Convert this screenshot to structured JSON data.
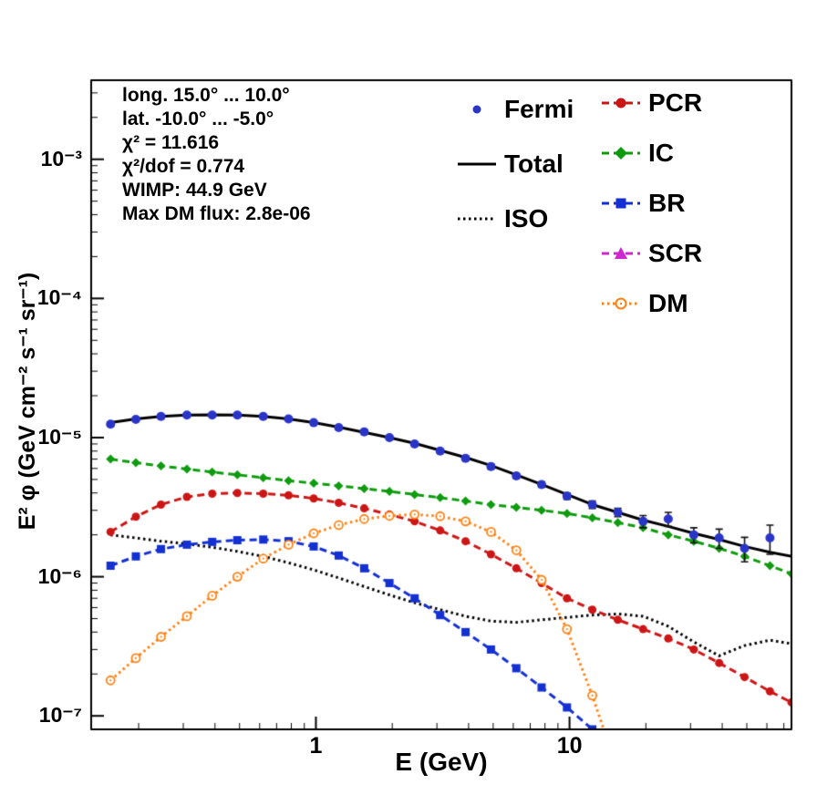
{
  "annotations": {
    "lines": [
      "long. 15.0° ... 10.0°",
      "lat. -10.0° ... -5.0°",
      "χ² = 11.616",
      "χ²/dof = 0.774",
      "WIMP: 44.9 GeV",
      "Max DM flux: 2.8e-06"
    ]
  },
  "chart_data": {
    "type": "line",
    "title": "",
    "xlabel": "E (GeV)",
    "ylabel": "E² φ (GeV cm⁻² s⁻¹ sr⁻¹)",
    "xscale": "log",
    "yscale": "log",
    "xlim": [
      0.13,
      75
    ],
    "ylim": [
      8e-08,
      0.0037
    ],
    "grid": false,
    "x_ticks": [
      {
        "value": 1,
        "label": "1"
      },
      {
        "value": 10,
        "label": "10"
      }
    ],
    "y_ticks": [
      {
        "value": 1e-07,
        "label": "10⁻⁷"
      },
      {
        "value": 1e-06,
        "label": "10⁻⁶"
      },
      {
        "value": 1e-05,
        "label": "10⁻⁵"
      },
      {
        "value": 0.0001,
        "label": "10⁻⁴"
      },
      {
        "value": 0.001,
        "label": "10⁻³"
      }
    ],
    "draw_order": [
      "IC",
      "ISO",
      "BR",
      "PCR",
      "DM",
      "Total",
      "Fermi"
    ],
    "series": [
      {
        "name": "Fermi",
        "color": "#2a35c8",
        "line": "none",
        "marker": "dot",
        "marker_size": 5,
        "x": [
          0.155,
          0.195,
          0.245,
          0.31,
          0.39,
          0.49,
          0.62,
          0.78,
          0.98,
          1.23,
          1.55,
          1.95,
          2.45,
          3.09,
          3.89,
          4.9,
          6.17,
          7.76,
          9.77,
          12.3,
          15.5,
          19.5,
          24.5,
          30.9,
          38.9,
          49,
          61.7
        ],
        "y": [
          1.25e-05,
          1.35e-05,
          1.42e-05,
          1.45e-05,
          1.45e-05,
          1.45e-05,
          1.42e-05,
          1.36e-05,
          1.28e-05,
          1.18e-05,
          1.1e-05,
          1e-05,
          9e-06,
          8e-06,
          7.1e-06,
          6.2e-06,
          5.3e-06,
          4.6e-06,
          3.8e-06,
          3.3e-06,
          2.9e-06,
          2.5e-06,
          2.6e-06,
          2e-06,
          1.9e-06,
          1.6e-06,
          1.9e-06
        ],
        "yerr": [
          4e-07,
          4e-07,
          4e-07,
          4e-07,
          4e-07,
          4e-07,
          4e-07,
          4e-07,
          3.5e-07,
          3.5e-07,
          3e-07,
          3e-07,
          3e-07,
          2.5e-07,
          2.5e-07,
          2.5e-07,
          2e-07,
          2e-07,
          2e-07,
          2e-07,
          2e-07,
          2.5e-07,
          3e-07,
          2.5e-07,
          3e-07,
          3.2e-07,
          4.5e-07
        ]
      },
      {
        "name": "Total",
        "color": "#000000",
        "line": "solid",
        "line_width": 3,
        "marker": "none",
        "x": [
          0.155,
          0.195,
          0.245,
          0.31,
          0.39,
          0.49,
          0.62,
          0.78,
          0.98,
          1.23,
          1.55,
          1.95,
          2.45,
          3.09,
          3.89,
          4.9,
          6.17,
          7.76,
          9.77,
          12.3,
          15.5,
          19.5,
          24.5,
          30.9,
          38.9,
          49,
          61.7,
          75
        ],
        "y": [
          1.28e-05,
          1.36e-05,
          1.42e-05,
          1.45e-05,
          1.46e-05,
          1.45e-05,
          1.42e-05,
          1.36e-05,
          1.28e-05,
          1.19e-05,
          1.09e-05,
          1e-05,
          9.1e-06,
          8.1e-06,
          7.2e-06,
          6.3e-06,
          5.4e-06,
          4.6e-06,
          3.9e-06,
          3.3e-06,
          2.9e-06,
          2.55e-06,
          2.3e-06,
          2.05e-06,
          1.85e-06,
          1.65e-06,
          1.5e-06,
          1.4e-06
        ]
      },
      {
        "name": "ISO",
        "color": "#000000",
        "line": "dotted",
        "line_width": 3,
        "marker": "none",
        "x": [
          0.155,
          0.195,
          0.245,
          0.31,
          0.39,
          0.49,
          0.62,
          0.78,
          0.98,
          1.23,
          1.55,
          1.95,
          2.45,
          3.09,
          3.89,
          4.9,
          6.17,
          7.76,
          9.77,
          12.3,
          15.5,
          19.5,
          24.5,
          30.9,
          38.9,
          49,
          61.7,
          75
        ],
        "y": [
          2e-06,
          1.9e-06,
          1.8e-06,
          1.72e-06,
          1.63e-06,
          1.52e-06,
          1.4e-06,
          1.26e-06,
          1.12e-06,
          9.8e-07,
          8.5e-07,
          7.4e-07,
          6.5e-07,
          5.8e-07,
          5.2e-07,
          4.8e-07,
          4.7e-07,
          4.9e-07,
          5.1e-07,
          5.3e-07,
          5.4e-07,
          5.2e-07,
          4.4e-07,
          3.4e-07,
          2.7e-07,
          3.2e-07,
          3.5e-07,
          3.3e-07
        ]
      },
      {
        "name": "PCR",
        "color": "#cc1616",
        "line": "dashed",
        "line_width": 3,
        "marker": "circle",
        "marker_size": 4.5,
        "x": [
          0.155,
          0.195,
          0.245,
          0.31,
          0.39,
          0.49,
          0.62,
          0.78,
          0.98,
          1.23,
          1.55,
          1.95,
          2.45,
          3.09,
          3.89,
          4.9,
          6.17,
          7.76,
          9.77,
          12.3,
          15.5,
          19.5,
          24.5,
          30.9,
          38.9,
          49,
          61.7,
          75
        ],
        "y": [
          2.1e-06,
          2.7e-06,
          3.3e-06,
          3.75e-06,
          3.95e-06,
          4e-06,
          3.95e-06,
          3.85e-06,
          3.65e-06,
          3.4e-06,
          3.1e-06,
          2.8e-06,
          2.5e-06,
          2.15e-06,
          1.8e-06,
          1.45e-06,
          1.15e-06,
          9e-07,
          7e-07,
          5.8e-07,
          4.9e-07,
          4.2e-07,
          3.6e-07,
          3e-07,
          2.4e-07,
          1.9e-07,
          1.5e-07,
          1.25e-07
        ]
      },
      {
        "name": "IC",
        "color": "#0f9b0f",
        "line": "dashed",
        "line_width": 3,
        "marker": "diamond",
        "marker_size": 4,
        "x": [
          0.155,
          0.195,
          0.245,
          0.31,
          0.39,
          0.49,
          0.62,
          0.78,
          0.98,
          1.23,
          1.55,
          1.95,
          2.45,
          3.09,
          3.89,
          4.9,
          6.17,
          7.76,
          9.77,
          12.3,
          15.5,
          19.5,
          24.5,
          30.9,
          38.9,
          49,
          61.7,
          75
        ],
        "y": [
          7e-06,
          6.6e-06,
          6.25e-06,
          5.95e-06,
          5.65e-06,
          5.4e-06,
          5.15e-06,
          4.9e-06,
          4.7e-06,
          4.5e-06,
          4.3e-06,
          4.1e-06,
          3.9e-06,
          3.7e-06,
          3.5e-06,
          3.3e-06,
          3.15e-06,
          3e-06,
          2.85e-06,
          2.65e-06,
          2.45e-06,
          2.25e-06,
          2e-06,
          1.8e-06,
          1.6e-06,
          1.4e-06,
          1.2e-06,
          1.05e-06
        ]
      },
      {
        "name": "BR",
        "color": "#1430d2",
        "line": "dashed",
        "line_width": 3,
        "marker": "square",
        "marker_size": 4.5,
        "x": [
          0.155,
          0.195,
          0.245,
          0.31,
          0.39,
          0.49,
          0.62,
          0.78,
          0.98,
          1.23,
          1.55,
          1.95,
          2.45,
          3.09,
          3.89,
          4.9,
          6.17,
          7.76,
          9.77,
          12.3
        ],
        "y": [
          1.2e-06,
          1.4e-06,
          1.58e-06,
          1.7e-06,
          1.78e-06,
          1.83e-06,
          1.85e-06,
          1.8e-06,
          1.65e-06,
          1.42e-06,
          1.15e-06,
          9e-07,
          7e-07,
          5.3e-07,
          4e-07,
          3e-07,
          2.2e-07,
          1.6e-07,
          1.15e-07,
          8e-08
        ]
      },
      {
        "name": "SCR",
        "color": "#cf28cf",
        "line": "dashed",
        "line_width": 3,
        "marker": "triangle",
        "marker_size": 5,
        "x": [],
        "y": []
      },
      {
        "name": "DM",
        "color": "#ff8214",
        "line": "dotted",
        "line_width": 3,
        "marker": "circle-open",
        "marker_size": 4.5,
        "x": [
          0.155,
          0.195,
          0.245,
          0.31,
          0.39,
          0.49,
          0.62,
          0.78,
          0.98,
          1.23,
          1.55,
          1.95,
          2.45,
          3.09,
          3.89,
          4.9,
          6.17,
          7.76,
          9.77,
          12.3,
          15.5
        ],
        "y": [
          1.8e-07,
          2.6e-07,
          3.7e-07,
          5.2e-07,
          7.3e-07,
          1e-06,
          1.35e-06,
          1.7e-06,
          2.05e-06,
          2.35e-06,
          2.6e-06,
          2.74e-06,
          2.8e-06,
          2.72e-06,
          2.5e-06,
          2.1e-06,
          1.55e-06,
          9.5e-07,
          4.2e-07,
          1.4e-07,
          4e-08
        ]
      }
    ],
    "legend": {
      "columns": [
        {
          "x": 500,
          "start_y": 104,
          "step": 60,
          "entries": [
            {
              "label": "Fermi",
              "color": "#2a35c8",
              "line": "none",
              "marker": "dot"
            },
            {
              "label": "Total",
              "color": "#000000",
              "line": "solid",
              "marker": "none"
            },
            {
              "label": "ISO",
              "color": "#000000",
              "line": "dotted",
              "marker": "none"
            }
          ]
        },
        {
          "x": 658,
          "start_y": 97,
          "step": 55,
          "entries": [
            {
              "label": "PCR",
              "color": "#cc1616",
              "line": "dashed",
              "marker": "circle"
            },
            {
              "label": "IC",
              "color": "#0f9b0f",
              "line": "dashed",
              "marker": "diamond"
            },
            {
              "label": "BR",
              "color": "#1430d2",
              "line": "dashed",
              "marker": "square"
            },
            {
              "label": "SCR",
              "color": "#cf28cf",
              "line": "dashed",
              "marker": "triangle"
            },
            {
              "label": "DM",
              "color": "#ff8214",
              "line": "dotted",
              "marker": "circle-open"
            }
          ]
        }
      ]
    }
  }
}
